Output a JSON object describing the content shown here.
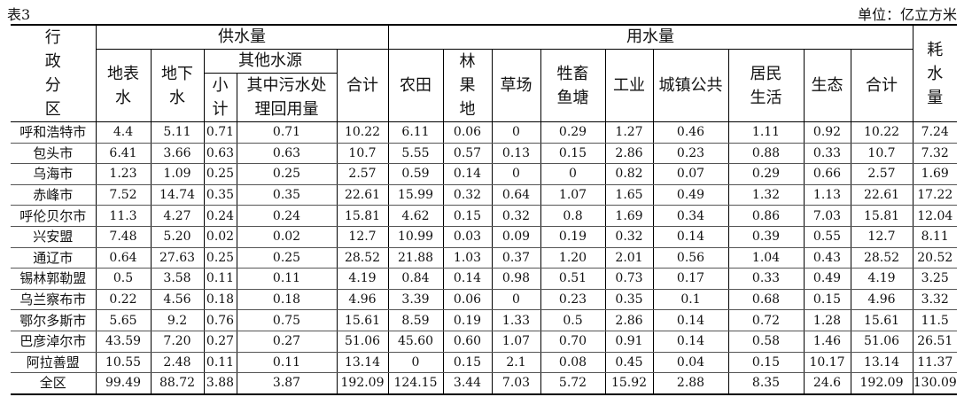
{
  "header": {
    "title": "表3",
    "unit": "单位：亿立方米"
  },
  "table": {
    "region_header": "行政分区",
    "supply_header": "供水量",
    "use_header": "用水量",
    "consumption_header": "耗水量",
    "other_sources_header": "其他水源",
    "supply_columns": [
      "地表水",
      "地下水"
    ],
    "other_columns": [
      "小计",
      "其中污水处理回用量"
    ],
    "supply_total": "合计",
    "use_columns": [
      "农田",
      "林果地",
      "草场",
      "牲畜鱼塘",
      "工业",
      "城镇公共",
      "居民生活",
      "生态",
      "合计"
    ],
    "rows": [
      [
        "呼和浩特市",
        "4.4",
        "5.11",
        "0.71",
        "0.71",
        "10.22",
        "6.11",
        "0.06",
        "0",
        "0.29",
        "1.27",
        "0.46",
        "1.11",
        "0.92",
        "10.22",
        "7.24"
      ],
      [
        "包头市",
        "6.41",
        "3.66",
        "0.63",
        "0.63",
        "10.7",
        "5.55",
        "0.57",
        "0.13",
        "0.15",
        "2.86",
        "0.23",
        "0.88",
        "0.33",
        "10.7",
        "7.32"
      ],
      [
        "乌海市",
        "1.23",
        "1.09",
        "0.25",
        "0.25",
        "2.57",
        "0.59",
        "0.14",
        "0",
        "0",
        "0.82",
        "0.07",
        "0.29",
        "0.66",
        "2.57",
        "1.69"
      ],
      [
        "赤峰市",
        "7.52",
        "14.74",
        "0.35",
        "0.35",
        "22.61",
        "15.99",
        "0.32",
        "0.64",
        "1.07",
        "1.65",
        "0.49",
        "1.32",
        "1.13",
        "22.61",
        "17.22"
      ],
      [
        "呼伦贝尔市",
        "11.3",
        "4.27",
        "0.24",
        "0.24",
        "15.81",
        "4.62",
        "0.15",
        "0.32",
        "0.8",
        "1.69",
        "0.34",
        "0.86",
        "7.03",
        "15.81",
        "12.04"
      ],
      [
        "兴安盟",
        "7.48",
        "5.20",
        "0.02",
        "0.02",
        "12.7",
        "10.99",
        "0.03",
        "0.09",
        "0.19",
        "0.32",
        "0.14",
        "0.39",
        "0.55",
        "12.7",
        "8.11"
      ],
      [
        "通辽市",
        "0.64",
        "27.63",
        "0.25",
        "0.25",
        "28.52",
        "21.88",
        "1.03",
        "0.37",
        "1.20",
        "2.01",
        "0.56",
        "1.04",
        "0.43",
        "28.52",
        "20.52"
      ],
      [
        "锡林郭勒盟",
        "0.5",
        "3.58",
        "0.11",
        "0.11",
        "4.19",
        "0.84",
        "0.14",
        "0.98",
        "0.51",
        "0.73",
        "0.17",
        "0.33",
        "0.49",
        "4.19",
        "3.25"
      ],
      [
        "乌兰察布市",
        "0.22",
        "4.56",
        "0.18",
        "0.18",
        "4.96",
        "3.39",
        "0.06",
        "0",
        "0.23",
        "0.35",
        "0.1",
        "0.68",
        "0.15",
        "4.96",
        "3.32"
      ],
      [
        "鄂尔多斯市",
        "5.65",
        "9.2",
        "0.76",
        "0.75",
        "15.61",
        "8.59",
        "0.19",
        "1.33",
        "0.5",
        "2.86",
        "0.14",
        "0.72",
        "1.28",
        "15.61",
        "11.5"
      ],
      [
        "巴彦淖尔市",
        "43.59",
        "7.20",
        "0.27",
        "0.27",
        "51.06",
        "45.60",
        "0.60",
        "1.07",
        "0.70",
        "0.91",
        "0.14",
        "0.58",
        "1.46",
        "51.06",
        "26.51"
      ],
      [
        "阿拉善盟",
        "10.55",
        "2.48",
        "0.11",
        "0.11",
        "13.14",
        "0",
        "0.15",
        "2.1",
        "0.08",
        "0.45",
        "0.04",
        "0.15",
        "10.17",
        "13.14",
        "11.37"
      ],
      [
        "全区",
        "99.49",
        "88.72",
        "3.88",
        "3.87",
        "192.09",
        "124.15",
        "3.44",
        "7.03",
        "5.72",
        "15.92",
        "2.88",
        "8.35",
        "24.6",
        "192.09",
        "130.09"
      ]
    ]
  }
}
